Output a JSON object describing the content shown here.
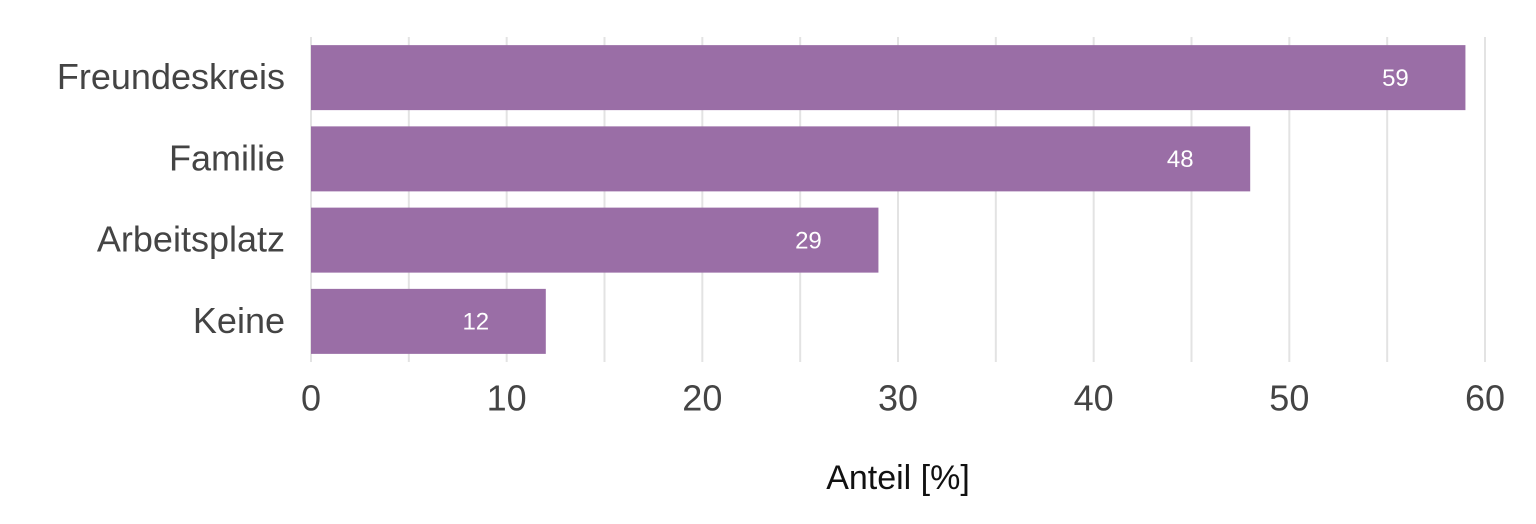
{
  "chart_data": {
    "type": "hbar",
    "xlabel": "Anteil [%]",
    "categories": [
      "Freundeskreis",
      "Familie",
      "Arbeitsplatz",
      "Keine"
    ],
    "values": [
      59,
      48,
      29,
      12
    ],
    "color": "#9a6ea6",
    "xlim": [
      0,
      60
    ],
    "xticks": [
      0,
      10,
      20,
      30,
      40,
      50,
      60
    ],
    "xminorticks": [
      5,
      15,
      25,
      35,
      45,
      55
    ],
    "grid": true
  }
}
